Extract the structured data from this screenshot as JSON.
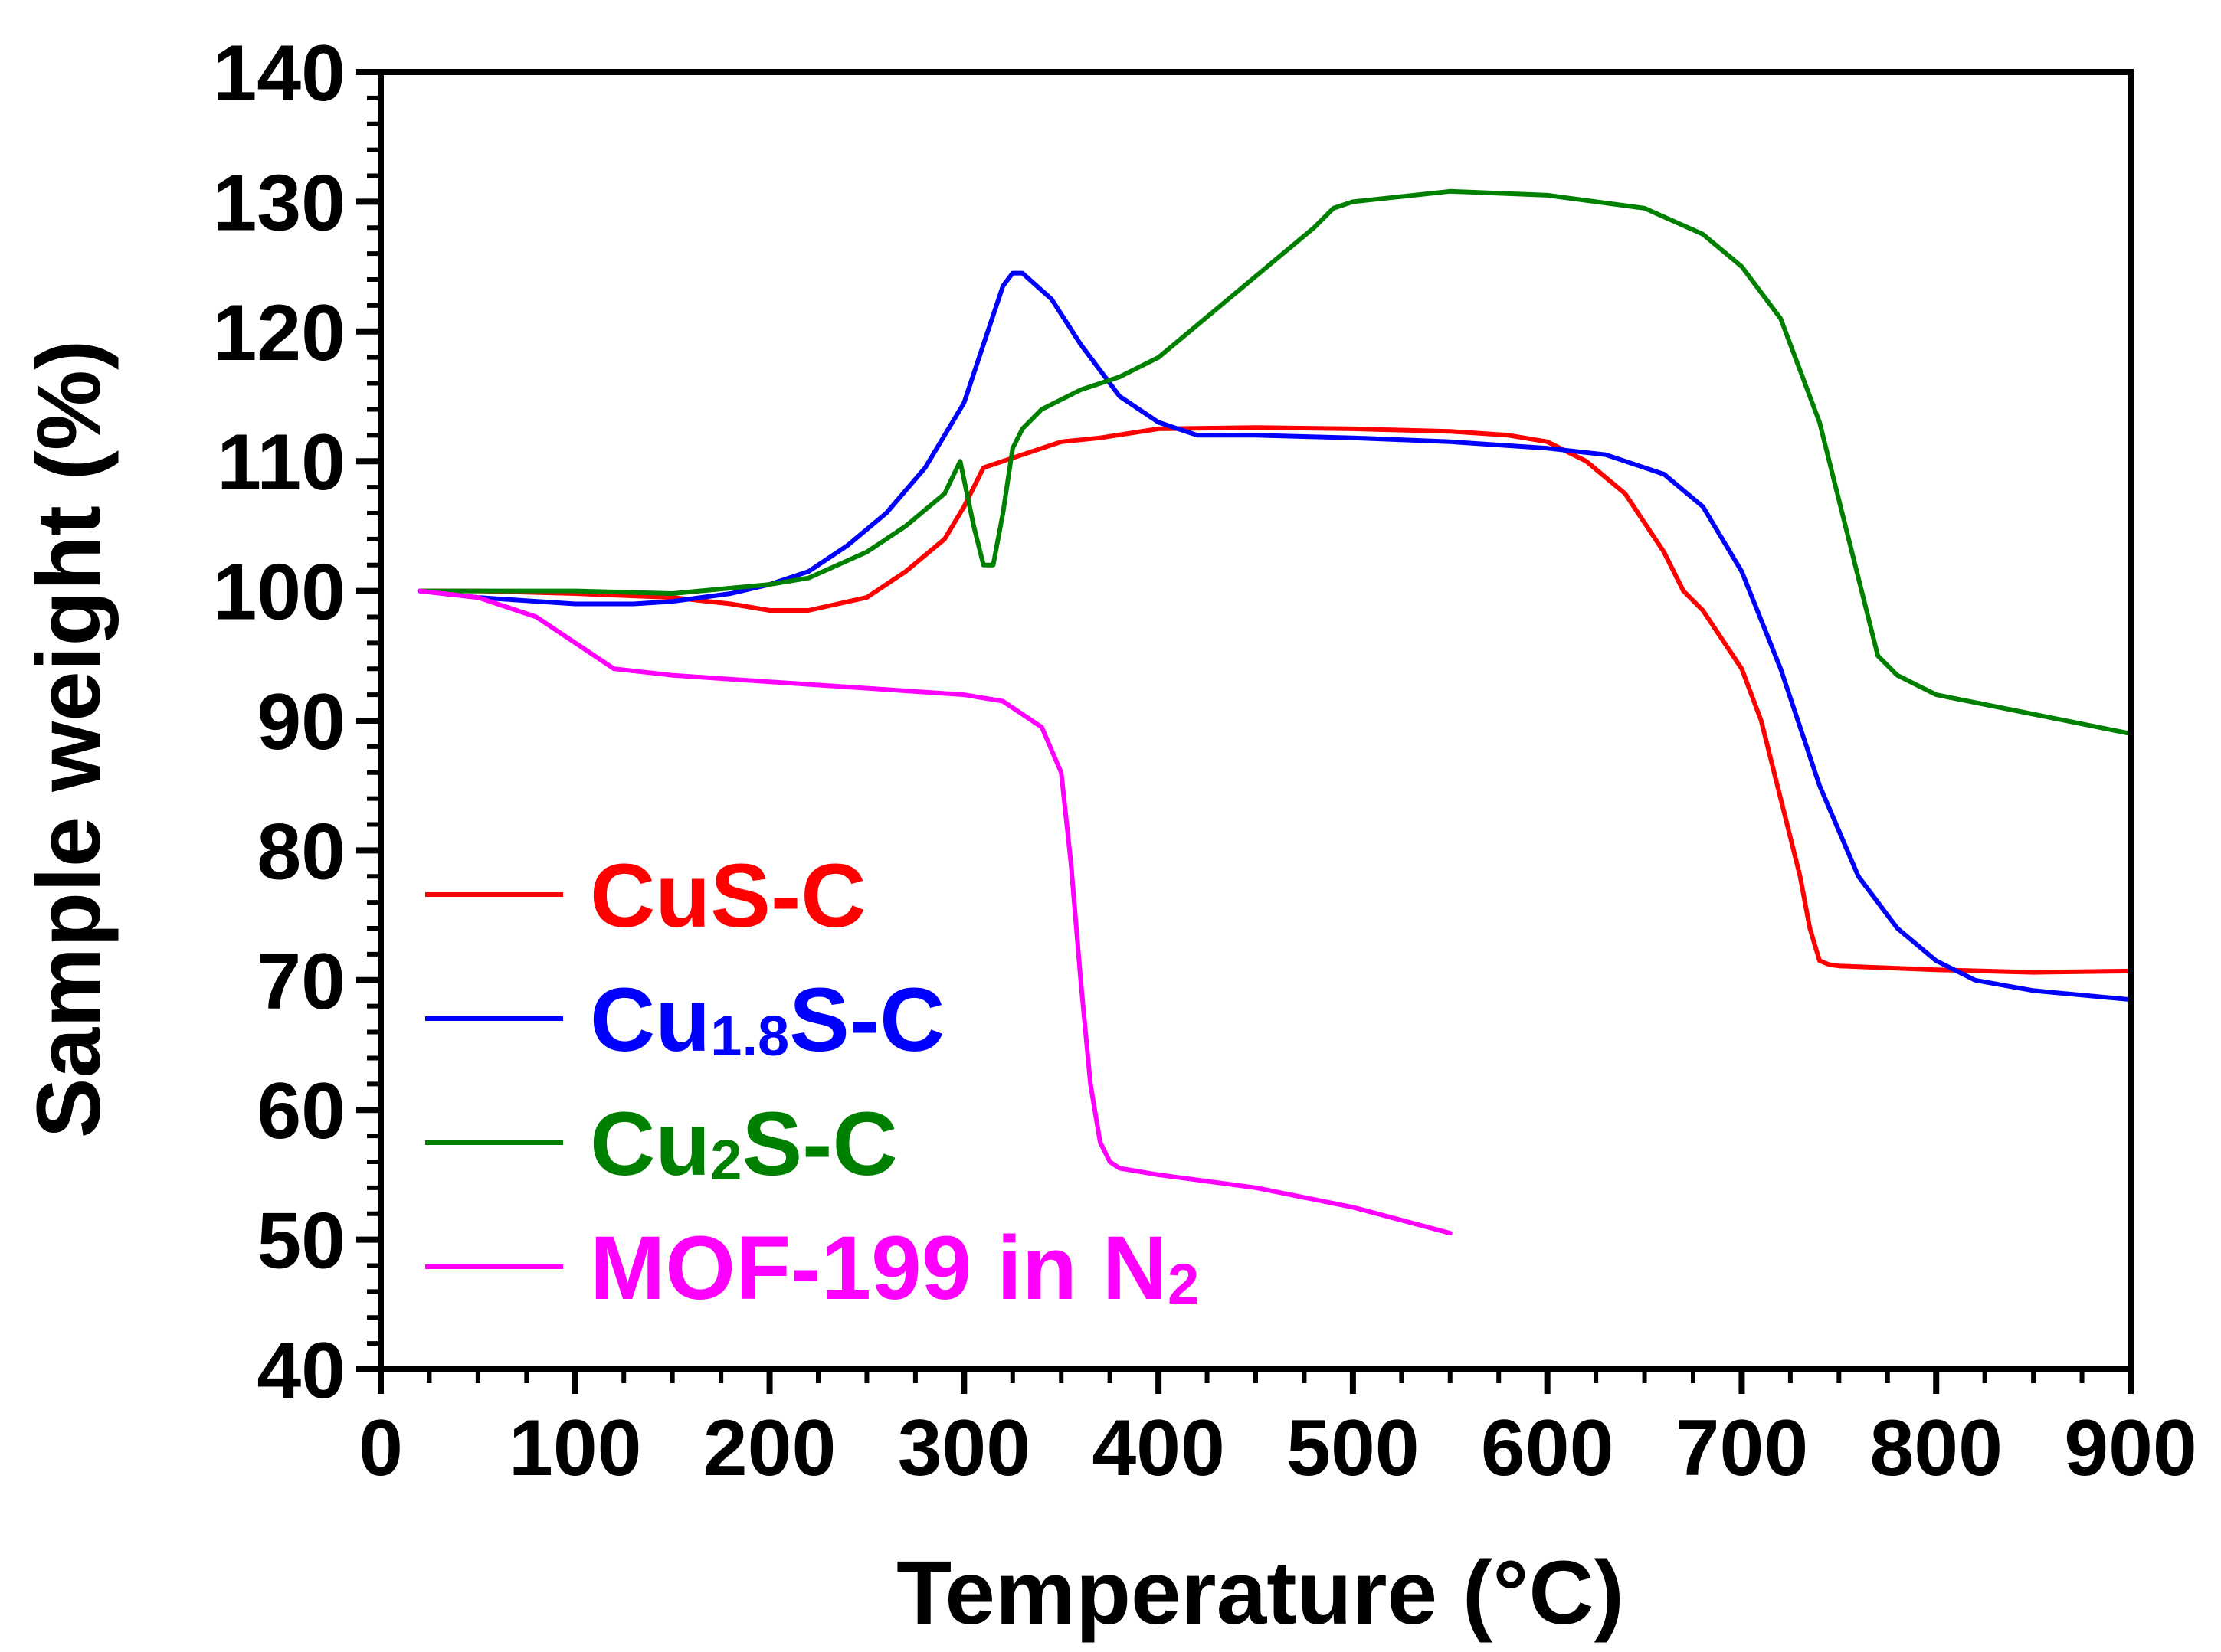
{
  "chart_data": {
    "type": "line",
    "title": "",
    "xlabel": "Temperature (°C)",
    "ylabel": "Sample weight (%)",
    "xlim": [
      0,
      900
    ],
    "ylim": [
      40,
      140
    ],
    "x_ticks": [
      0,
      100,
      200,
      300,
      400,
      500,
      600,
      700,
      800,
      900
    ],
    "y_ticks": [
      40,
      50,
      60,
      70,
      80,
      90,
      100,
      110,
      120,
      130,
      140
    ],
    "x_tick_labels": [
      "0",
      "100",
      "200",
      "300",
      "400",
      "500",
      "600",
      "700",
      "800",
      "900"
    ],
    "y_tick_labels": [
      "40",
      "50",
      "60",
      "70",
      "80",
      "90",
      "100",
      "110",
      "120",
      "130",
      "140"
    ],
    "grid": false,
    "legend_position": "lower-left",
    "series": [
      {
        "name": "CuS-C",
        "label_main": "CuS-C",
        "label_sub": "",
        "label_tail": "",
        "color": "#ff0000",
        "x": [
          20,
          50,
          100,
          150,
          180,
          200,
          220,
          250,
          270,
          290,
          300,
          310,
          330,
          350,
          370,
          400,
          450,
          500,
          550,
          580,
          600,
          620,
          640,
          660,
          670,
          680,
          700,
          710,
          720,
          730,
          735,
          740,
          745,
          750,
          800,
          850,
          900
        ],
        "y": [
          100,
          100,
          99.8,
          99.5,
          99,
          98.5,
          98.5,
          99.5,
          101.5,
          104,
          106.5,
          109.5,
          110.5,
          111.5,
          111.8,
          112.5,
          112.6,
          112.5,
          112.3,
          112,
          111.5,
          110,
          107.5,
          103,
          100,
          98.5,
          94,
          90,
          84,
          78,
          74,
          71.5,
          71.2,
          71.1,
          70.8,
          70.6,
          70.7
        ]
      },
      {
        "name": "Cu1.8S-C",
        "label_main": "Cu",
        "label_sub": "1.8",
        "label_tail": "S-C",
        "color": "#0000ff",
        "x": [
          20,
          50,
          100,
          130,
          150,
          180,
          200,
          220,
          240,
          260,
          280,
          300,
          310,
          320,
          325,
          330,
          345,
          360,
          380,
          400,
          420,
          450,
          500,
          550,
          600,
          630,
          660,
          680,
          700,
          720,
          740,
          760,
          780,
          800,
          820,
          850,
          900
        ],
        "y": [
          100,
          99.5,
          99,
          99,
          99.2,
          99.8,
          100.5,
          101.5,
          103.5,
          106,
          109.5,
          114.5,
          119,
          123.5,
          124.5,
          124.5,
          122.5,
          119,
          115,
          113,
          112,
          112,
          111.8,
          111.5,
          111,
          110.5,
          109,
          106.5,
          101.5,
          94,
          85,
          78,
          74,
          71.5,
          70,
          69.2,
          68.5
        ]
      },
      {
        "name": "Cu2S-C",
        "label_main": "Cu",
        "label_sub": "2",
        "label_tail": "S-C",
        "color": "#008000",
        "x": [
          20,
          50,
          100,
          150,
          200,
          220,
          250,
          270,
          290,
          298,
          305,
          310,
          315,
          320,
          325,
          330,
          340,
          360,
          380,
          400,
          420,
          440,
          460,
          480,
          490,
          500,
          550,
          600,
          650,
          680,
          700,
          720,
          740,
          760,
          770,
          780,
          800,
          850,
          900
        ],
        "y": [
          100,
          100,
          100,
          99.8,
          100.5,
          101,
          103,
          105,
          107.5,
          110,
          105,
          102,
          102,
          106,
          111,
          112.5,
          114,
          115.5,
          116.5,
          118,
          120.5,
          123,
          125.5,
          128,
          129.5,
          130,
          130.8,
          130.5,
          129.5,
          127.5,
          125,
          121,
          113,
          101,
          95,
          93.5,
          92,
          90.5,
          89
        ]
      },
      {
        "name": "MOF-199 in N2",
        "label_main": "MOF-199 in N",
        "label_sub": "2",
        "label_tail": "",
        "color": "#ff00ff",
        "x": [
          20,
          50,
          80,
          100,
          120,
          150,
          200,
          250,
          300,
          320,
          340,
          350,
          355,
          360,
          365,
          370,
          375,
          380,
          400,
          450,
          500,
          550
        ],
        "y": [
          100,
          99.5,
          98,
          96,
          94,
          93.5,
          93,
          92.5,
          92,
          91.5,
          89.5,
          86,
          79,
          70,
          62,
          57.5,
          56,
          55.5,
          55,
          54,
          52.5,
          50.5
        ]
      }
    ]
  }
}
